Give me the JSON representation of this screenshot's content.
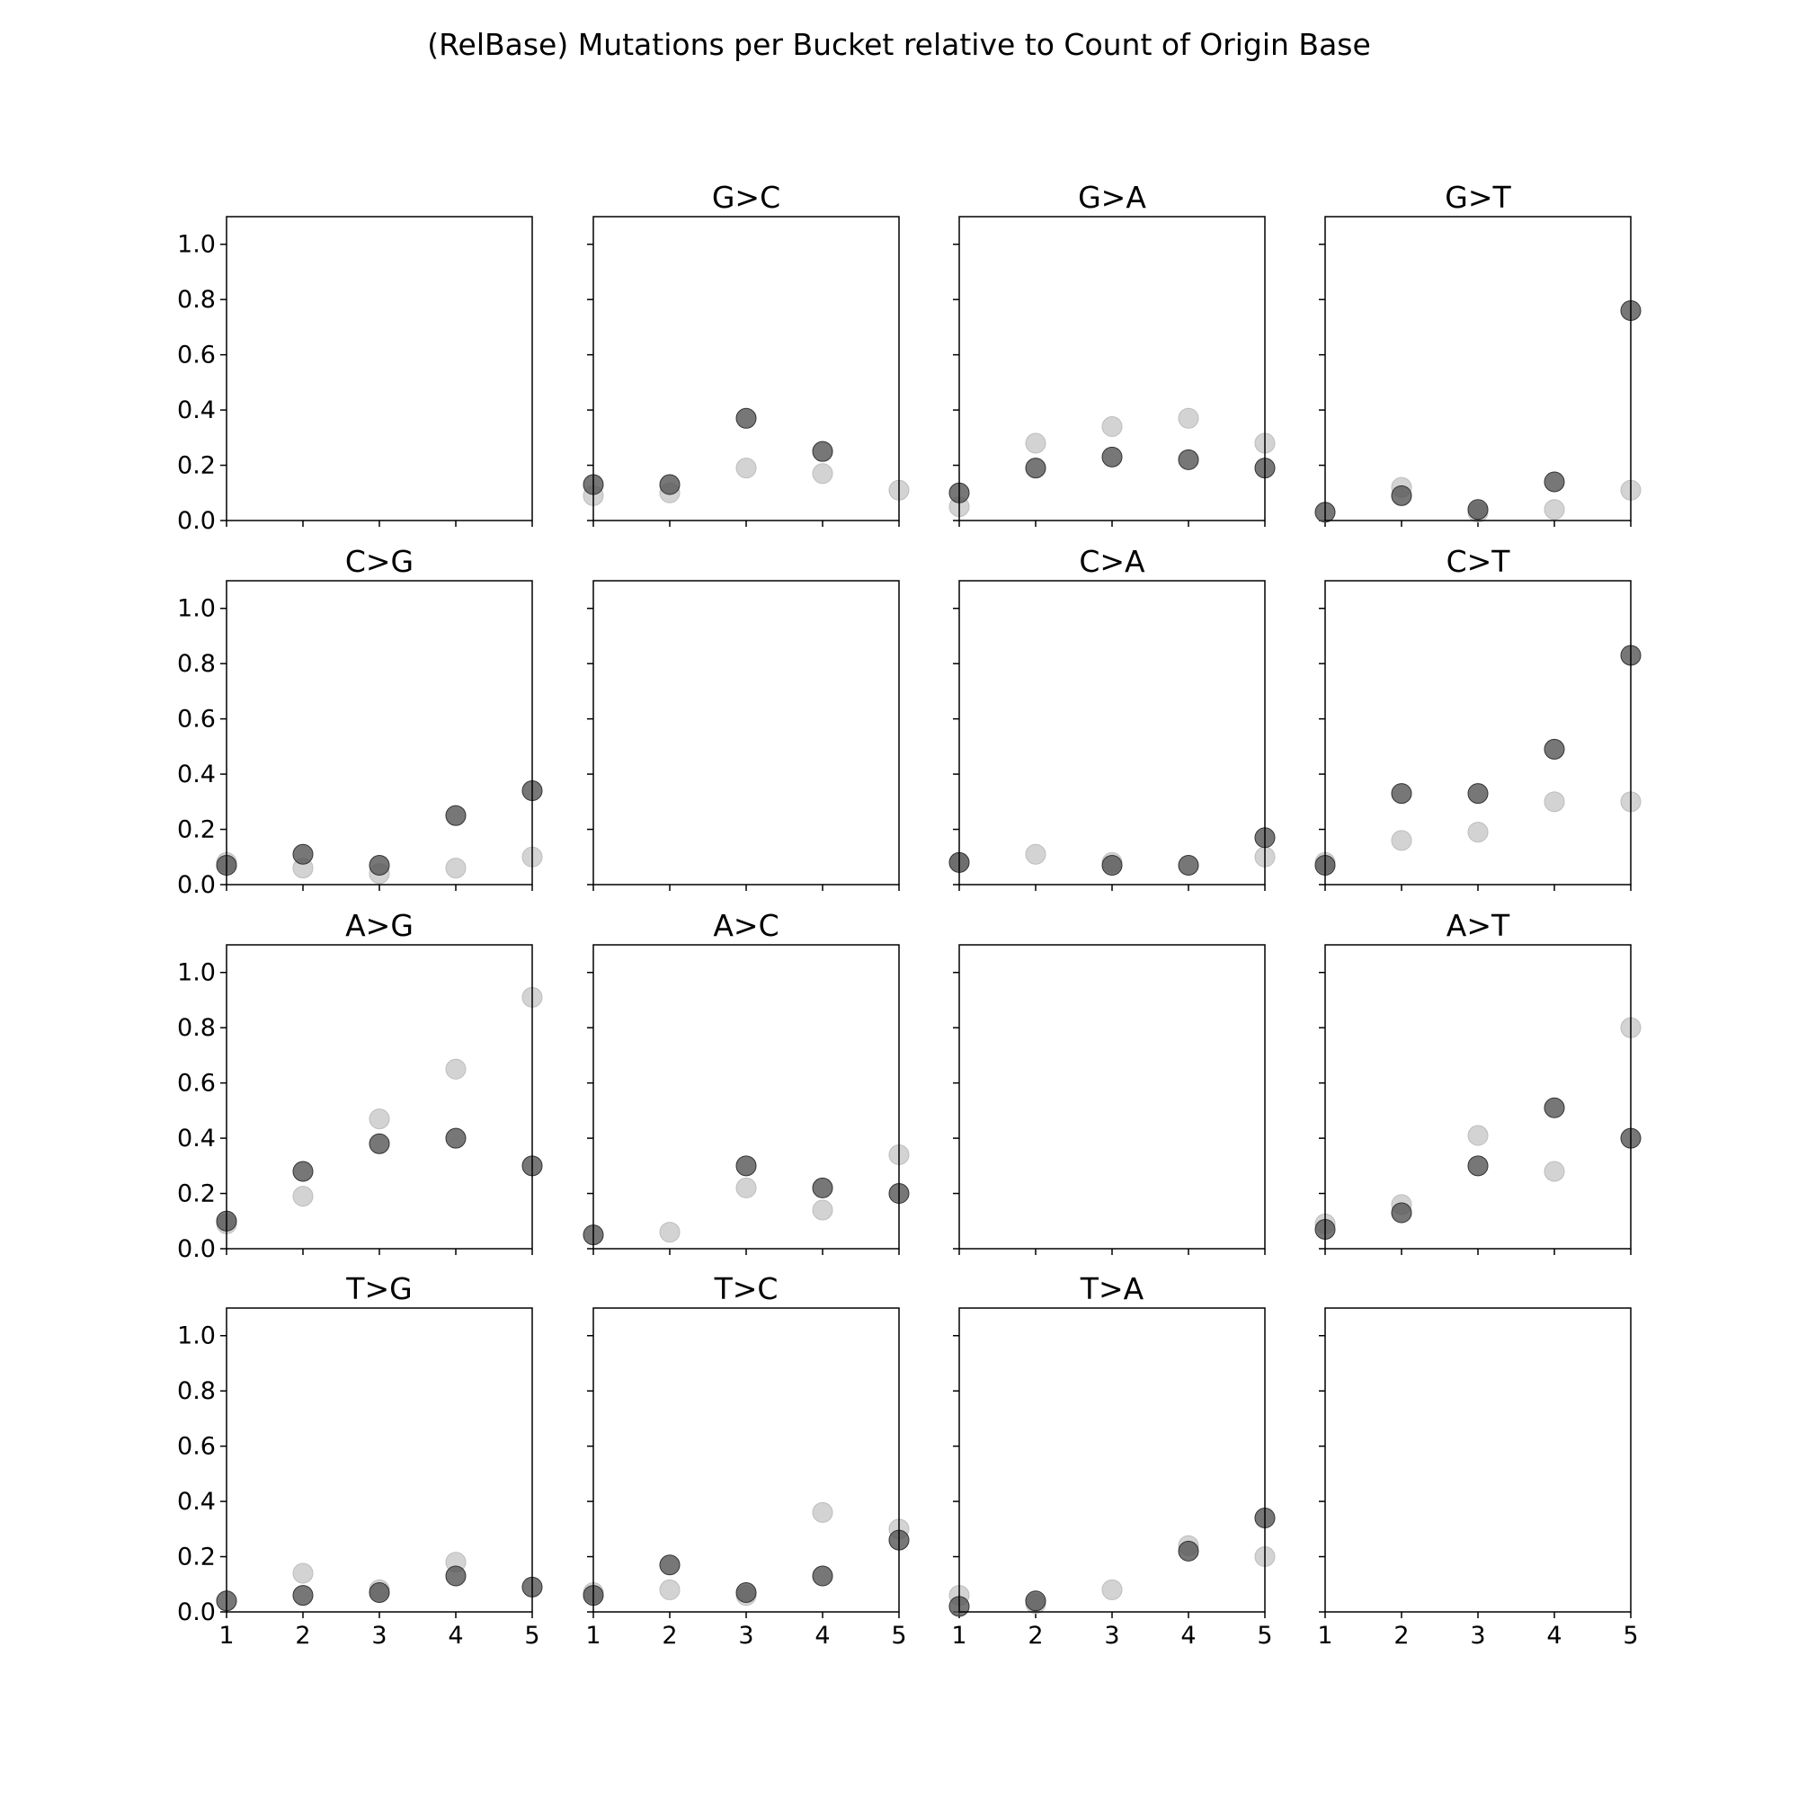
{
  "title": "(RelBase) Mutations per Bucket relative to Count of Origin Base",
  "colors": {
    "series_dark": "#555555",
    "series_light": "#c8c8c8",
    "axes": "#000000",
    "background": "#ffffff"
  },
  "chart_data": [
    {
      "type": "scatter",
      "title": "",
      "xlim": [
        1,
        5
      ],
      "ylim": [
        0,
        1.1
      ],
      "xticks": [
        "1",
        "2",
        "3",
        "4",
        "5"
      ],
      "yticks": [
        "0.0",
        "0.2",
        "0.4",
        "0.6",
        "0.8",
        "1.0"
      ],
      "grid": false,
      "series": []
    },
    {
      "type": "scatter",
      "title": "G>C",
      "xlim": [
        1,
        5
      ],
      "ylim": [
        0,
        1.1
      ],
      "xticks": [
        "1",
        "2",
        "3",
        "4",
        "5"
      ],
      "yticks": [
        "0.0",
        "0.2",
        "0.4",
        "0.6",
        "0.8",
        "1.0"
      ],
      "grid": false,
      "series": [
        {
          "color": "light",
          "x": [
            1,
            2,
            3,
            4,
            5
          ],
          "y": [
            0.09,
            0.1,
            0.19,
            0.17,
            0.11
          ]
        },
        {
          "color": "dark",
          "x": [
            1,
            2,
            3,
            4
          ],
          "y": [
            0.13,
            0.13,
            0.37,
            0.25
          ]
        }
      ]
    },
    {
      "type": "scatter",
      "title": "G>A",
      "xlim": [
        1,
        5
      ],
      "ylim": [
        0,
        1.1
      ],
      "xticks": [
        "1",
        "2",
        "3",
        "4",
        "5"
      ],
      "yticks": [
        "0.0",
        "0.2",
        "0.4",
        "0.6",
        "0.8",
        "1.0"
      ],
      "grid": false,
      "series": [
        {
          "color": "light",
          "x": [
            1,
            2,
            3,
            4,
            5
          ],
          "y": [
            0.05,
            0.28,
            0.34,
            0.37,
            0.28
          ]
        },
        {
          "color": "dark",
          "x": [
            1,
            2,
            3,
            4,
            5
          ],
          "y": [
            0.1,
            0.19,
            0.23,
            0.22,
            0.19
          ]
        }
      ]
    },
    {
      "type": "scatter",
      "title": "G>T",
      "xlim": [
        1,
        5
      ],
      "ylim": [
        0,
        1.1
      ],
      "xticks": [
        "1",
        "2",
        "3",
        "4",
        "5"
      ],
      "yticks": [
        "0.0",
        "0.2",
        "0.4",
        "0.6",
        "0.8",
        "1.0"
      ],
      "grid": false,
      "series": [
        {
          "color": "light",
          "x": [
            2,
            3,
            4,
            5
          ],
          "y": [
            0.12,
            0.03,
            0.04,
            0.11
          ]
        },
        {
          "color": "dark",
          "x": [
            1,
            2,
            3,
            4,
            5
          ],
          "y": [
            0.03,
            0.09,
            0.04,
            0.14,
            0.76
          ]
        }
      ]
    },
    {
      "type": "scatter",
      "title": "C>G",
      "xlim": [
        1,
        5
      ],
      "ylim": [
        0,
        1.1
      ],
      "xticks": [
        "1",
        "2",
        "3",
        "4",
        "5"
      ],
      "yticks": [
        "0.0",
        "0.2",
        "0.4",
        "0.6",
        "0.8",
        "1.0"
      ],
      "grid": false,
      "series": [
        {
          "color": "light",
          "x": [
            1,
            2,
            3,
            4,
            5
          ],
          "y": [
            0.08,
            0.06,
            0.04,
            0.06,
            0.1
          ]
        },
        {
          "color": "dark",
          "x": [
            1,
            2,
            3,
            4,
            5
          ],
          "y": [
            0.07,
            0.11,
            0.07,
            0.25,
            0.34
          ]
        }
      ]
    },
    {
      "type": "scatter",
      "title": "",
      "xlim": [
        1,
        5
      ],
      "ylim": [
        0,
        1.1
      ],
      "xticks": [
        "1",
        "2",
        "3",
        "4",
        "5"
      ],
      "yticks": [
        "0.0",
        "0.2",
        "0.4",
        "0.6",
        "0.8",
        "1.0"
      ],
      "grid": false,
      "series": []
    },
    {
      "type": "scatter",
      "title": "C>A",
      "xlim": [
        1,
        5
      ],
      "ylim": [
        0,
        1.1
      ],
      "xticks": [
        "1",
        "2",
        "3",
        "4",
        "5"
      ],
      "yticks": [
        "0.0",
        "0.2",
        "0.4",
        "0.6",
        "0.8",
        "1.0"
      ],
      "grid": false,
      "series": [
        {
          "color": "light",
          "x": [
            1,
            2,
            3,
            5
          ],
          "y": [
            0.08,
            0.11,
            0.08,
            0.1
          ]
        },
        {
          "color": "dark",
          "x": [
            1,
            3,
            4,
            5
          ],
          "y": [
            0.08,
            0.07,
            0.07,
            0.17
          ]
        }
      ]
    },
    {
      "type": "scatter",
      "title": "C>T",
      "xlim": [
        1,
        5
      ],
      "ylim": [
        0,
        1.1
      ],
      "xticks": [
        "1",
        "2",
        "3",
        "4",
        "5"
      ],
      "yticks": [
        "0.0",
        "0.2",
        "0.4",
        "0.6",
        "0.8",
        "1.0"
      ],
      "grid": false,
      "series": [
        {
          "color": "light",
          "x": [
            1,
            2,
            3,
            4,
            5
          ],
          "y": [
            0.08,
            0.16,
            0.19,
            0.3,
            0.3
          ]
        },
        {
          "color": "dark",
          "x": [
            1,
            2,
            3,
            4,
            5
          ],
          "y": [
            0.07,
            0.33,
            0.33,
            0.49,
            0.83
          ]
        }
      ]
    },
    {
      "type": "scatter",
      "title": "A>G",
      "xlim": [
        1,
        5
      ],
      "ylim": [
        0,
        1.1
      ],
      "xticks": [
        "1",
        "2",
        "3",
        "4",
        "5"
      ],
      "yticks": [
        "0.0",
        "0.2",
        "0.4",
        "0.6",
        "0.8",
        "1.0"
      ],
      "grid": false,
      "series": [
        {
          "color": "light",
          "x": [
            1,
            2,
            3,
            4,
            5
          ],
          "y": [
            0.09,
            0.19,
            0.47,
            0.65,
            0.91
          ]
        },
        {
          "color": "dark",
          "x": [
            1,
            2,
            3,
            4,
            5
          ],
          "y": [
            0.1,
            0.28,
            0.38,
            0.4,
            0.3
          ]
        }
      ]
    },
    {
      "type": "scatter",
      "title": "A>C",
      "xlim": [
        1,
        5
      ],
      "ylim": [
        0,
        1.1
      ],
      "xticks": [
        "1",
        "2",
        "3",
        "4",
        "5"
      ],
      "yticks": [
        "0.0",
        "0.2",
        "0.4",
        "0.6",
        "0.8",
        "1.0"
      ],
      "grid": false,
      "series": [
        {
          "color": "light",
          "x": [
            2,
            3,
            4,
            5
          ],
          "y": [
            0.06,
            0.22,
            0.14,
            0.34
          ]
        },
        {
          "color": "dark",
          "x": [
            1,
            3,
            4,
            5
          ],
          "y": [
            0.05,
            0.3,
            0.22,
            0.2
          ]
        }
      ]
    },
    {
      "type": "scatter",
      "title": "",
      "xlim": [
        1,
        5
      ],
      "ylim": [
        0,
        1.1
      ],
      "xticks": [
        "1",
        "2",
        "3",
        "4",
        "5"
      ],
      "yticks": [
        "0.0",
        "0.2",
        "0.4",
        "0.6",
        "0.8",
        "1.0"
      ],
      "grid": false,
      "series": []
    },
    {
      "type": "scatter",
      "title": "A>T",
      "xlim": [
        1,
        5
      ],
      "ylim": [
        0,
        1.1
      ],
      "xticks": [
        "1",
        "2",
        "3",
        "4",
        "5"
      ],
      "yticks": [
        "0.0",
        "0.2",
        "0.4",
        "0.6",
        "0.8",
        "1.0"
      ],
      "grid": false,
      "series": [
        {
          "color": "light",
          "x": [
            1,
            2,
            3,
            4,
            5
          ],
          "y": [
            0.09,
            0.16,
            0.41,
            0.28,
            0.8
          ]
        },
        {
          "color": "dark",
          "x": [
            1,
            2,
            3,
            4,
            5
          ],
          "y": [
            0.07,
            0.13,
            0.3,
            0.51,
            0.4
          ]
        }
      ]
    },
    {
      "type": "scatter",
      "title": "T>G",
      "xlim": [
        1,
        5
      ],
      "ylim": [
        0,
        1.1
      ],
      "xticks": [
        "1",
        "2",
        "3",
        "4",
        "5"
      ],
      "yticks": [
        "0.0",
        "0.2",
        "0.4",
        "0.6",
        "0.8",
        "1.0"
      ],
      "grid": false,
      "series": [
        {
          "color": "light",
          "x": [
            2,
            3,
            4
          ],
          "y": [
            0.14,
            0.08,
            0.18
          ]
        },
        {
          "color": "dark",
          "x": [
            1,
            2,
            3,
            4,
            5
          ],
          "y": [
            0.04,
            0.06,
            0.07,
            0.13,
            0.09
          ]
        }
      ]
    },
    {
      "type": "scatter",
      "title": "T>C",
      "xlim": [
        1,
        5
      ],
      "ylim": [
        0,
        1.1
      ],
      "xticks": [
        "1",
        "2",
        "3",
        "4",
        "5"
      ],
      "yticks": [
        "0.0",
        "0.2",
        "0.4",
        "0.6",
        "0.8",
        "1.0"
      ],
      "grid": false,
      "series": [
        {
          "color": "light",
          "x": [
            1,
            2,
            3,
            4,
            5
          ],
          "y": [
            0.07,
            0.08,
            0.06,
            0.36,
            0.3
          ]
        },
        {
          "color": "dark",
          "x": [
            1,
            2,
            3,
            4,
            5
          ],
          "y": [
            0.06,
            0.17,
            0.07,
            0.13,
            0.26
          ]
        }
      ]
    },
    {
      "type": "scatter",
      "title": "T>A",
      "xlim": [
        1,
        5
      ],
      "ylim": [
        0,
        1.1
      ],
      "xticks": [
        "1",
        "2",
        "3",
        "4",
        "5"
      ],
      "yticks": [
        "0.0",
        "0.2",
        "0.4",
        "0.6",
        "0.8",
        "1.0"
      ],
      "grid": false,
      "series": [
        {
          "color": "light",
          "x": [
            1,
            2,
            3,
            4,
            5
          ],
          "y": [
            0.06,
            0.03,
            0.08,
            0.24,
            0.2
          ]
        },
        {
          "color": "dark",
          "x": [
            1,
            2,
            4,
            5
          ],
          "y": [
            0.02,
            0.04,
            0.22,
            0.34
          ]
        }
      ]
    },
    {
      "type": "scatter",
      "title": "",
      "xlim": [
        1,
        5
      ],
      "ylim": [
        0,
        1.1
      ],
      "xticks": [
        "1",
        "2",
        "3",
        "4",
        "5"
      ],
      "yticks": [
        "0.0",
        "0.2",
        "0.4",
        "0.6",
        "0.8",
        "1.0"
      ],
      "grid": false,
      "series": []
    }
  ]
}
